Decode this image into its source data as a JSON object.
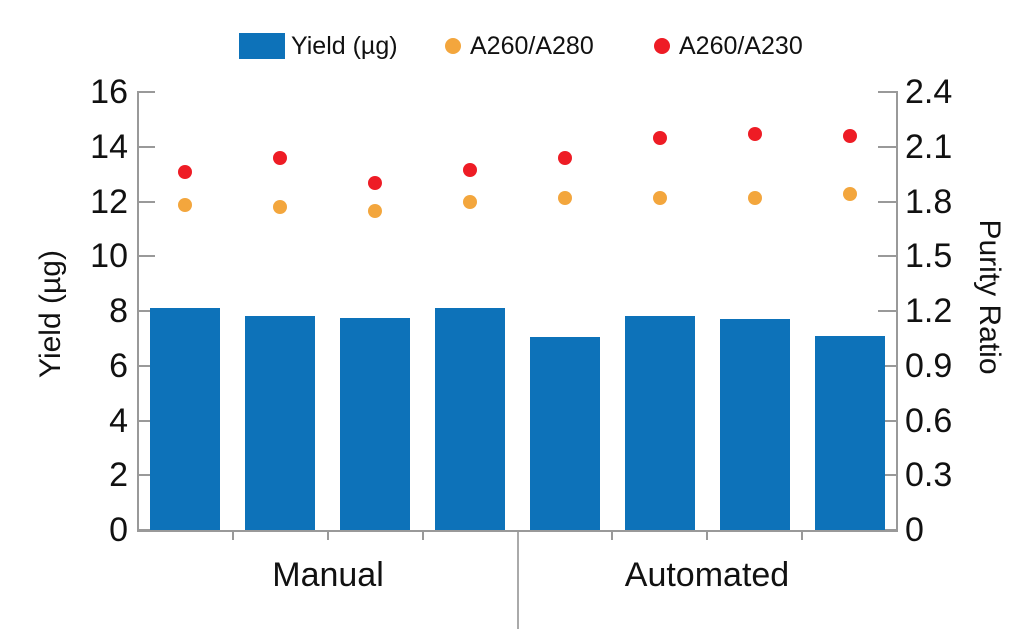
{
  "chart_data": {
    "type": "bar",
    "subtype": "combo-bar-scatter-dual-axis",
    "title": "",
    "groups": [
      {
        "label": "Manual",
        "count": 4
      },
      {
        "label": "Automated",
        "count": 4
      }
    ],
    "bar_series": {
      "name": "Yield (µg)",
      "axis": "left",
      "color": "#0D72B9",
      "values": [
        8.1,
        7.8,
        7.75,
        8.1,
        7.05,
        7.8,
        7.7,
        7.1
      ]
    },
    "point_series": [
      {
        "name": "A260/A280",
        "axis": "right",
        "color": "#F3A63D",
        "values": [
          1.78,
          1.77,
          1.75,
          1.8,
          1.82,
          1.82,
          1.82,
          1.84
        ]
      },
      {
        "name": "A260/A230",
        "axis": "right",
        "color": "#EE1C25",
        "values": [
          1.96,
          2.04,
          1.9,
          1.97,
          2.04,
          2.15,
          2.17,
          2.16
        ]
      }
    ],
    "left_axis": {
      "label": "Yield (µg)",
      "min": 0,
      "max": 16,
      "tick_labels": [
        "0",
        "2",
        "4",
        "6",
        "8",
        "10",
        "12",
        "14",
        "16"
      ]
    },
    "right_axis": {
      "label": "Purity Ratio",
      "min": 0,
      "max": 2.4,
      "tick_labels": [
        "0",
        "0.3",
        "0.6",
        "0.9",
        "1.2",
        "1.5",
        "1.8",
        "2.1",
        "2.4"
      ]
    },
    "legend": {
      "position": "top",
      "items": [
        {
          "label": "Yield (µg)",
          "marker": "square",
          "color": "#0D72B9"
        },
        {
          "label": "A260/A280",
          "marker": "circle",
          "color": "#F3A63D"
        },
        {
          "label": "A260/A230",
          "marker": "circle",
          "color": "#EE1C25"
        }
      ]
    },
    "grid": false,
    "axis_color": "#999999",
    "text_color": "#111111"
  }
}
